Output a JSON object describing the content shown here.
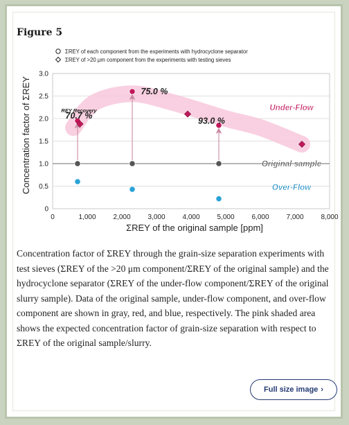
{
  "figure": {
    "title": "Figure 5",
    "caption": "Concentration factor of ΣREY through the grain-size separation experiments with test sieves (ΣREY of the >20 μm component/ΣREY of the original sample) and the hydrocyclone separator (ΣREY of the under-flow component/ΣREY of the original slurry sample). Data of the original sample, under-flow component, and over-flow component are shown in gray, red, and blue, respectively. The pink shaded area shows the expected concentration factor of grain-size separation with respect to ΣREY of the original sample/slurry.",
    "full_size_label": "Full size image"
  },
  "chart_data": {
    "type": "scatter",
    "xlabel": "ΣREY of the original sample [ppm]",
    "ylabel": "Concentration factor of ΣREY",
    "xlim": [
      0,
      8000
    ],
    "ylim": [
      0,
      3.0
    ],
    "xticks": [
      "0",
      "1,000",
      "2,000",
      "3,000",
      "4,000",
      "5,000",
      "6,000",
      "7,000",
      "8,000"
    ],
    "yticks": [
      "0",
      "0.5",
      "1.0",
      "1.5",
      "2.0",
      "2.5",
      "3.0"
    ],
    "legend": [
      {
        "marker": "circle",
        "label": "ΣREY of each component from the experiments with hydrocyclone separator"
      },
      {
        "marker": "diamond",
        "label": "ΣREY of >20 μm component from the experiments with testing sieves"
      }
    ],
    "legend_position": "top-left",
    "grid": "horizontal",
    "series": [
      {
        "group": "original",
        "color": "#555555",
        "marker": "circle",
        "points": [
          [
            720,
            1.0
          ],
          [
            2300,
            1.0
          ],
          [
            4800,
            1.0
          ]
        ]
      },
      {
        "group": "under-flow",
        "color": "#c2185b",
        "marker": "circle",
        "points": [
          [
            720,
            1.95
          ],
          [
            2300,
            2.6
          ],
          [
            4800,
            1.85
          ]
        ]
      },
      {
        "group": "under-flow",
        "color": "#c2185b",
        "marker": "diamond",
        "points": [
          [
            790,
            1.88
          ],
          [
            3900,
            2.1
          ],
          [
            7200,
            1.43
          ]
        ]
      },
      {
        "group": "over-flow",
        "color": "#29a3d6",
        "marker": "circle",
        "points": [
          [
            720,
            0.6
          ],
          [
            2300,
            0.43
          ],
          [
            4800,
            0.22
          ]
        ]
      }
    ],
    "annotations": [
      {
        "text": "REY Recovery",
        "x": 760,
        "y": 2.2
      },
      {
        "text": "70.7 %",
        "x": 760,
        "y": 2.06
      },
      {
        "text": "75.0 %",
        "x": 2550,
        "y": 2.6
      },
      {
        "text": "93.0 %",
        "x": 4200,
        "y": 1.95
      },
      {
        "text": "Under-Flow",
        "x": 6900,
        "y": 2.25
      },
      {
        "text": "Original sample",
        "x": 6900,
        "y": 1.0
      },
      {
        "text": "Over-Flow",
        "x": 6900,
        "y": 0.48
      }
    ],
    "arrows": [
      {
        "x": 720,
        "from": 1.08,
        "to": 1.85
      },
      {
        "x": 2300,
        "from": 1.08,
        "to": 2.48
      },
      {
        "x": 4800,
        "from": 1.08,
        "to": 1.73
      }
    ],
    "shaded_band": {
      "color": "#f8c8dc",
      "points": [
        [
          600,
          1.8
        ],
        [
          1200,
          2.35
        ],
        [
          2300,
          2.55
        ],
        [
          3500,
          2.35
        ],
        [
          5000,
          2.0
        ],
        [
          6000,
          1.8
        ],
        [
          7200,
          1.43
        ]
      ]
    },
    "colors": {
      "original": "#555555",
      "under_flow": "#c2185b",
      "over_flow": "#29a3d6",
      "band": "#f8c8dc",
      "label_under": "#c2185b",
      "label_over": "#1f8fc7"
    }
  }
}
